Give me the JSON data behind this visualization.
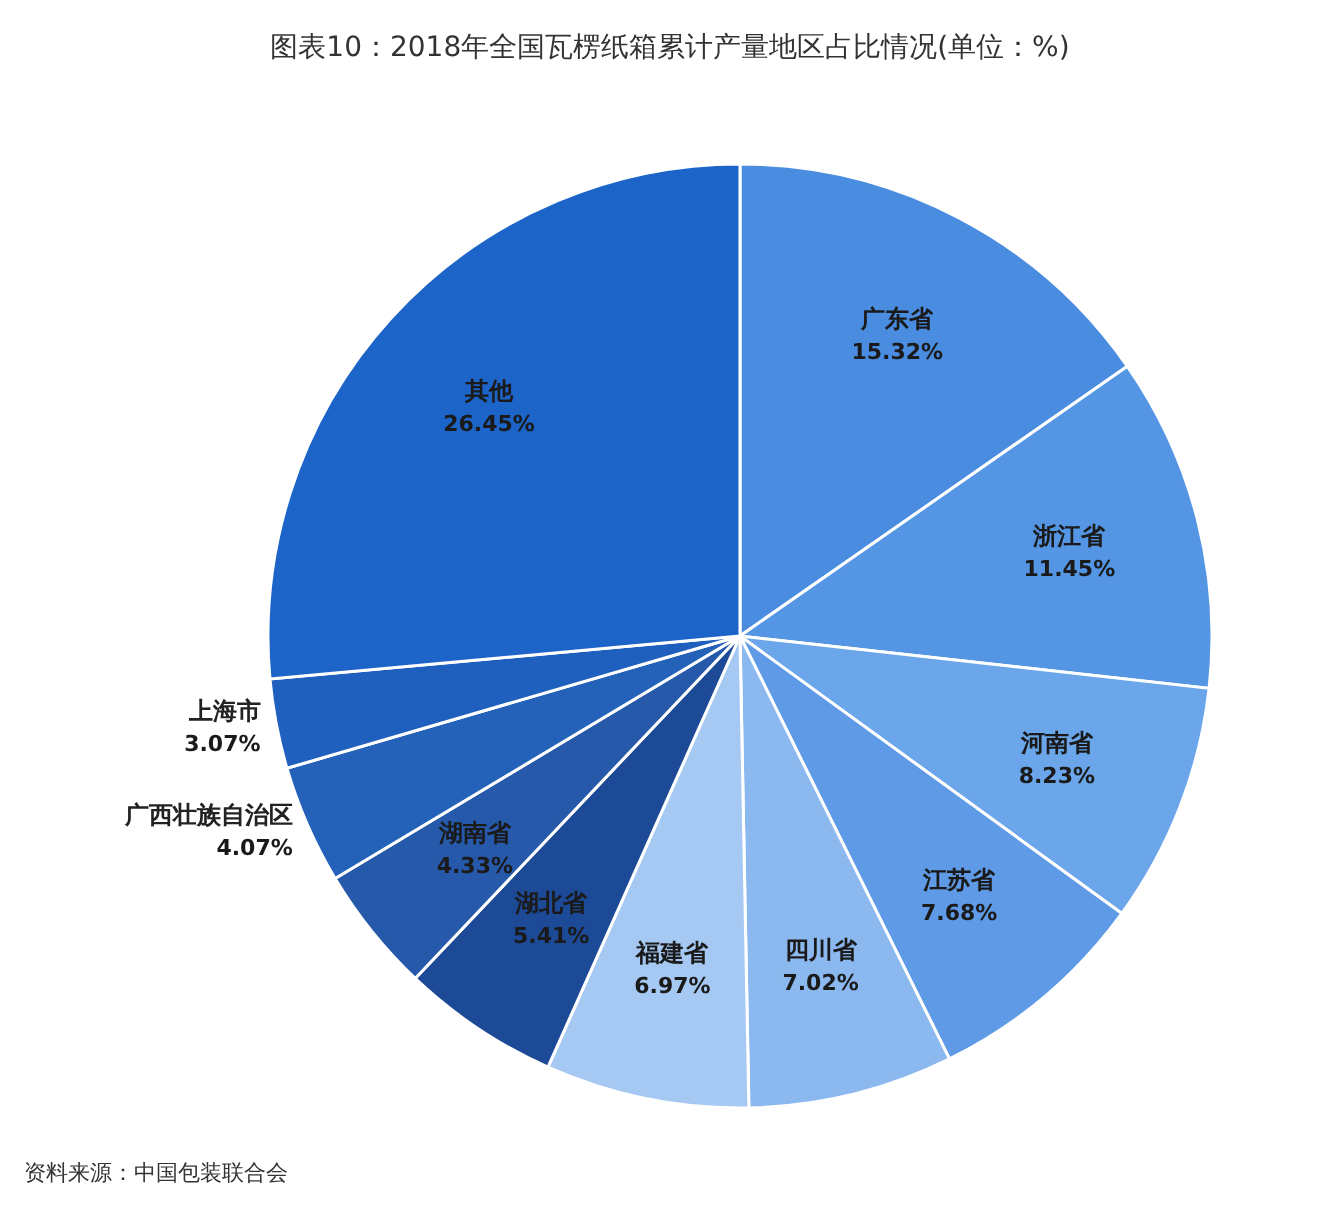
{
  "chart_data": {
    "type": "pie",
    "title": "图表10：2018年全国瓦楞纸箱累计产量地区占比情况(单位：%)",
    "categories": [
      "广东省",
      "浙江省",
      "河南省",
      "江苏省",
      "四川省",
      "福建省",
      "湖北省",
      "湖南省",
      "广西壮族自治区",
      "上海市",
      "其他"
    ],
    "values": [
      15.32,
      11.45,
      8.23,
      7.68,
      7.02,
      6.97,
      5.41,
      4.33,
      4.07,
      3.07,
      26.45
    ],
    "value_labels": [
      "15.32%",
      "11.45%",
      "8.23%",
      "7.68%",
      "7.02%",
      "6.97%",
      "5.41%",
      "4.33%",
      "4.07%",
      "3.07%",
      "26.45%"
    ],
    "colors": [
      "#4a8ce0",
      "#5596e4",
      "#6ba5ea",
      "#5e9ae6",
      "#8ab8ef",
      "#a6c9f3",
      "#1d4a96",
      "#2659aa",
      "#2461b8",
      "#1f5fbe",
      "#1c64c8"
    ],
    "annotations": [
      "资料来源：中国包装联合会"
    ]
  }
}
